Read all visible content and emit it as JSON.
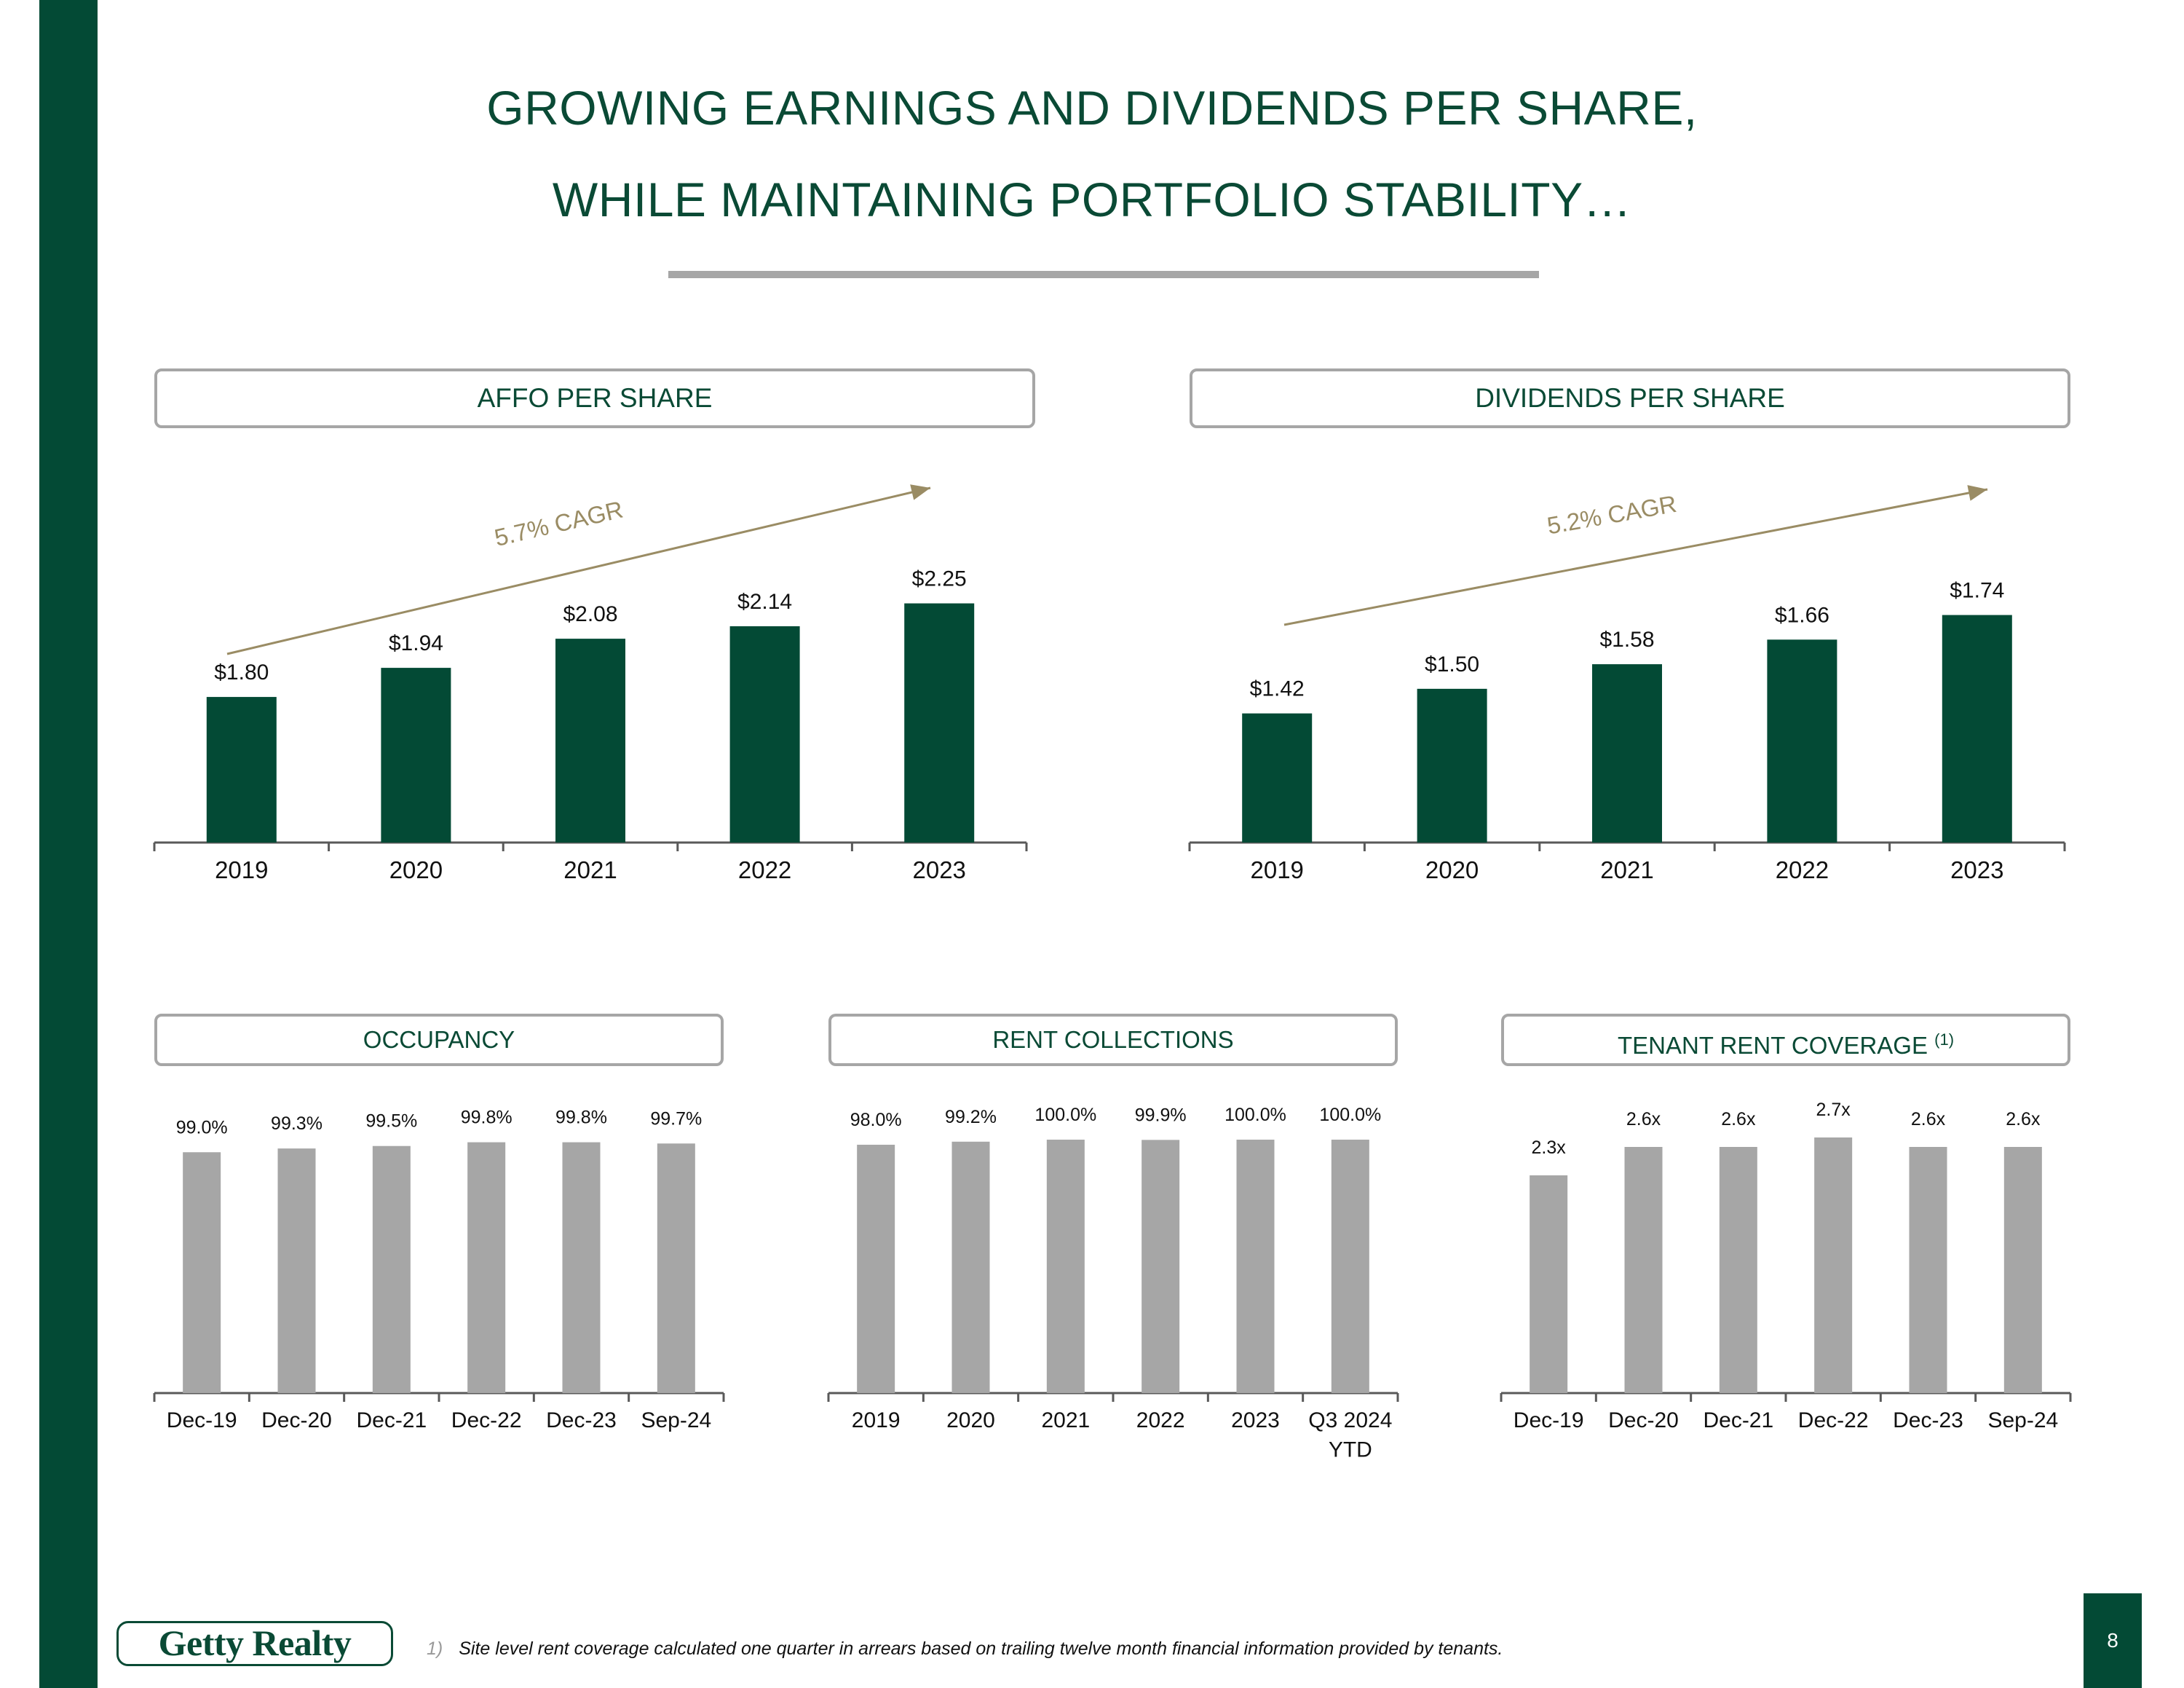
{
  "title_line_1": "GROWING EARNINGS AND DIVIDENDS PER SHARE,",
  "title_line_2": "WHILE MAINTAINING PORTFOLIO STABILITY…",
  "colors": {
    "brand_green": "#034a35",
    "bar_gray": "#a6a6a6",
    "cagr_gold": "#9a8c64"
  },
  "chart_data": [
    {
      "id": "affo",
      "type": "bar",
      "title": "AFFO PER SHARE",
      "categories": [
        "2019",
        "2020",
        "2021",
        "2022",
        "2023"
      ],
      "values": [
        1.8,
        1.94,
        2.08,
        2.14,
        2.25
      ],
      "labels": [
        "$1.80",
        "$1.94",
        "$2.08",
        "$2.14",
        "$2.25"
      ],
      "annotation": "5.7% CAGR",
      "ylim": [
        1.1,
        2.35
      ],
      "bar_color": "#034a35"
    },
    {
      "id": "dividends",
      "type": "bar",
      "title": "DIVIDENDS PER SHARE",
      "categories": [
        "2019",
        "2020",
        "2021",
        "2022",
        "2023"
      ],
      "values": [
        1.42,
        1.5,
        1.58,
        1.66,
        1.74
      ],
      "labels": [
        "$1.42",
        "$1.50",
        "$1.58",
        "$1.66",
        "$1.74"
      ],
      "annotation": "5.2% CAGR",
      "ylim": [
        1.0,
        1.81
      ],
      "bar_color": "#034a35"
    },
    {
      "id": "occupancy",
      "type": "bar",
      "title": "OCCUPANCY",
      "categories": [
        "Dec-19",
        "Dec-20",
        "Dec-21",
        "Dec-22",
        "Dec-23",
        "Sep-24"
      ],
      "values": [
        99.0,
        99.3,
        99.5,
        99.8,
        99.8,
        99.7
      ],
      "labels": [
        "99.0%",
        "99.3%",
        "99.5%",
        "99.8%",
        "99.8%",
        "99.7%"
      ],
      "ylim": [
        79.7,
        100.3
      ],
      "bar_color": "#a6a6a6"
    },
    {
      "id": "rent_collections",
      "type": "bar",
      "title": "RENT COLLECTIONS",
      "categories": [
        "2019",
        "2020",
        "2021",
        "2022",
        "2023",
        "Q3 2024 YTD"
      ],
      "values": [
        98.0,
        99.2,
        100.0,
        99.9,
        100.0,
        100.0
      ],
      "labels": [
        "98.0%",
        "99.2%",
        "100.0%",
        "99.9%",
        "100.0%",
        "100.0%"
      ],
      "ylim": [
        0,
        100.0
      ],
      "bar_color": "#a6a6a6"
    },
    {
      "id": "tenant_rent_coverage",
      "type": "bar",
      "title": "TENANT RENT COVERAGE",
      "title_note": "(1)",
      "categories": [
        "Dec-19",
        "Dec-20",
        "Dec-21",
        "Dec-22",
        "Dec-23",
        "Sep-24"
      ],
      "values": [
        2.3,
        2.6,
        2.6,
        2.7,
        2.6,
        2.6
      ],
      "labels": [
        "2.3x",
        "2.6x",
        "2.6x",
        "2.7x",
        "2.6x",
        "2.6x"
      ],
      "ylim": [
        0,
        2.7
      ],
      "bar_color": "#a6a6a6"
    }
  ],
  "footnote": {
    "marker": "1)",
    "text": "Site level rent coverage calculated one quarter in arrears based on trailing twelve month financial information provided by tenants."
  },
  "logo_text": "Getty Realty",
  "page_number": "8"
}
